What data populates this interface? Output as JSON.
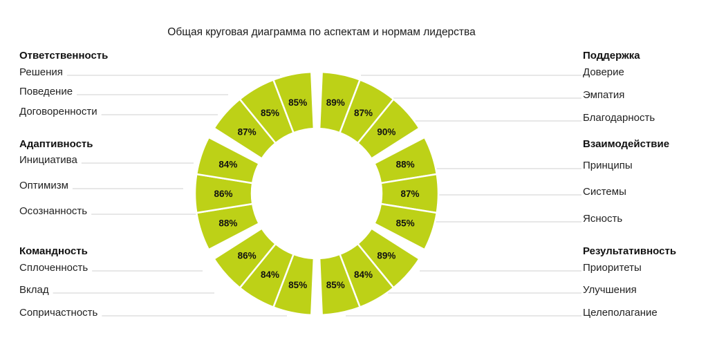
{
  "chart_data": {
    "type": "pie",
    "title": "Общая круговая диаграмма по аспектам и нормам лидерства",
    "segment_color": "#bdd117",
    "background": "#ffffff",
    "groups": [
      {
        "name": "Поддержка",
        "side": "right",
        "items": [
          {
            "label": "Доверие",
            "value": 89
          },
          {
            "label": "Эмпатия",
            "value": 87
          },
          {
            "label": "Благодарность",
            "value": 90
          }
        ]
      },
      {
        "name": "Взаимодействие",
        "side": "right",
        "items": [
          {
            "label": "Принципы",
            "value": 88
          },
          {
            "label": "Системы",
            "value": 87
          },
          {
            "label": "Ясность",
            "value": 85
          }
        ]
      },
      {
        "name": "Результативность",
        "side": "right",
        "items": [
          {
            "label": "Приоритеты",
            "value": 89
          },
          {
            "label": "Улучшения",
            "value": 84
          },
          {
            "label": "Целеполагание",
            "value": 85
          }
        ]
      },
      {
        "name": "Командность",
        "side": "left",
        "items": [
          {
            "label": "Сопричастность",
            "value": 85
          },
          {
            "label": "Вклад",
            "value": 84
          },
          {
            "label": "Сплоченность",
            "value": 86
          }
        ]
      },
      {
        "name": "Адаптивность",
        "side": "left",
        "items": [
          {
            "label": "Осознанность",
            "value": 88
          },
          {
            "label": "Оптимизм",
            "value": 86
          },
          {
            "label": "Инициатива",
            "value": 84
          }
        ]
      },
      {
        "name": "Ответственность",
        "side": "left",
        "items": [
          {
            "label": "Договоренности",
            "value": 87
          },
          {
            "label": "Поведение",
            "value": 85
          },
          {
            "label": "Решения",
            "value": 85
          }
        ]
      }
    ],
    "value_suffix": "%"
  }
}
